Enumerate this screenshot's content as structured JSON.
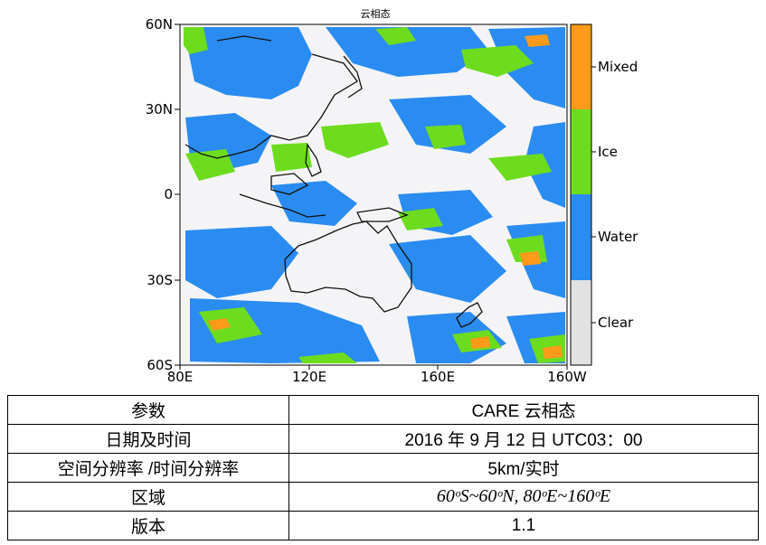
{
  "figure": {
    "title": "云相态",
    "y_ticks": [
      "60N",
      "30N",
      "0",
      "30S",
      "60S"
    ],
    "x_ticks": [
      "80E",
      "120E",
      "160E",
      "160W"
    ],
    "colorbar": {
      "labels": [
        "Mixed",
        "Ice",
        "Water",
        "Clear"
      ],
      "colors": {
        "Mixed": "#ff9a1a",
        "Ice": "#6ddc1e",
        "Water": "#2a8cf0",
        "Clear": "#e2e2e2"
      }
    },
    "map_colors": {
      "background": "#f4f4f6",
      "coast": "#111111"
    }
  },
  "table": {
    "rows": [
      {
        "key": "参数",
        "value": "CARE 云相态"
      },
      {
        "key": "日期及时间",
        "value": "2016 年 9 月 12 日 UTC03：00"
      },
      {
        "key": "空间分辨率 /时间分辨率",
        "value": "5km/实时"
      },
      {
        "key": "区域",
        "value": "60ᵒS~60ᵒN, 80ᵒE~160ᵒE"
      },
      {
        "key": "版本",
        "value": "1.1"
      }
    ]
  }
}
